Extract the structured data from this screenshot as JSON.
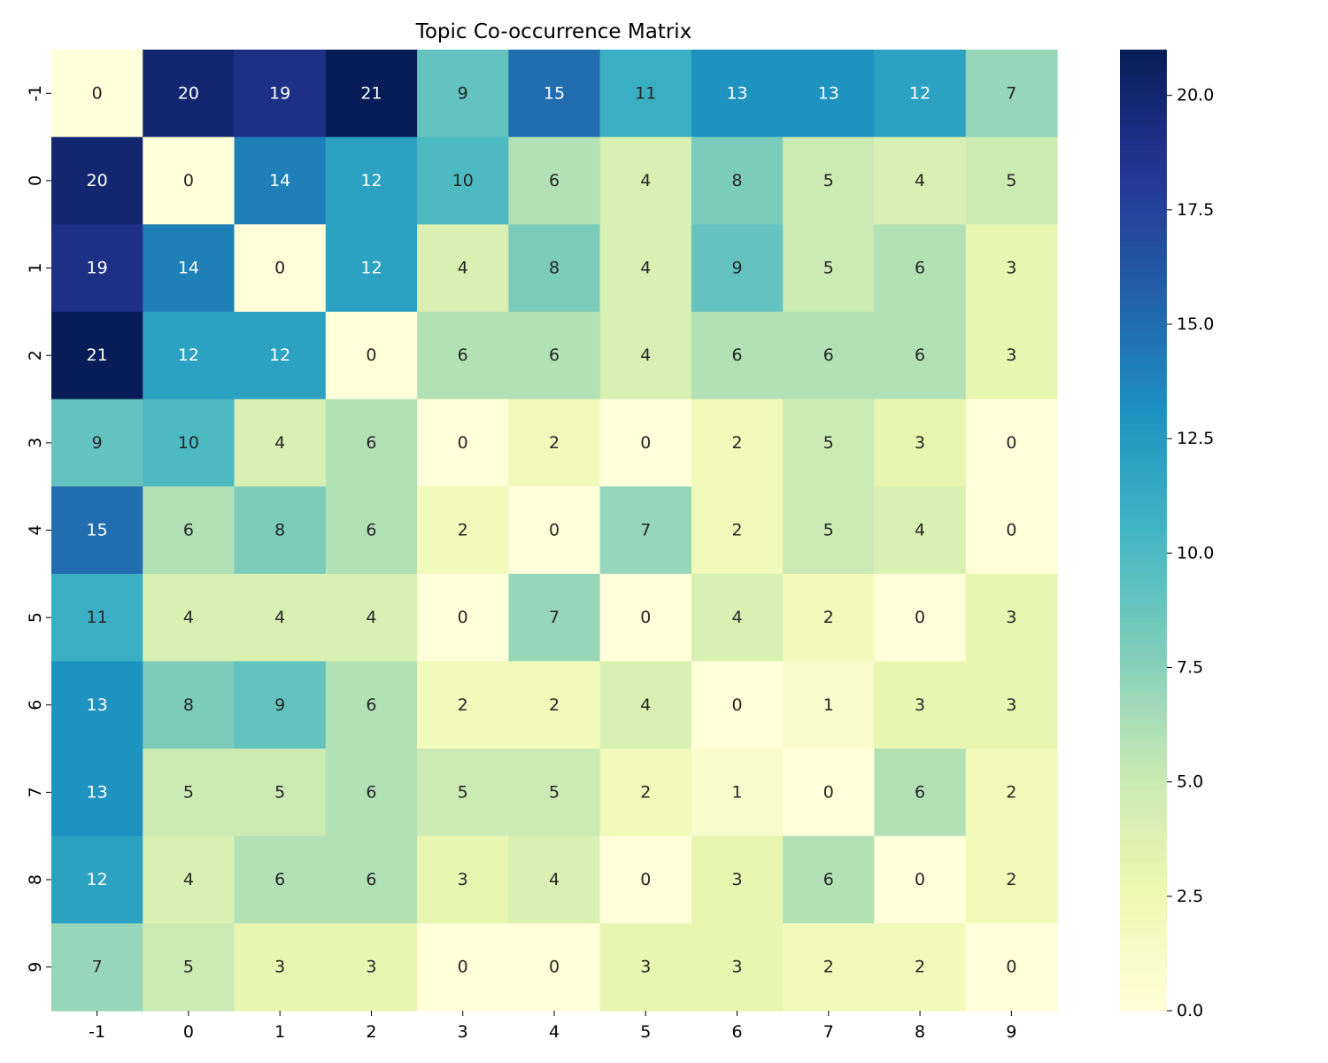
{
  "chart_data": {
    "type": "heatmap",
    "title": "Topic Co-occurrence Matrix",
    "xlabel": "",
    "ylabel": "",
    "x_categories": [
      "-1",
      "0",
      "1",
      "2",
      "3",
      "4",
      "5",
      "6",
      "7",
      "8",
      "9"
    ],
    "y_categories": [
      "-1",
      "0",
      "1",
      "2",
      "3",
      "4",
      "5",
      "6",
      "7",
      "8",
      "9"
    ],
    "values": [
      [
        0,
        20,
        19,
        21,
        9,
        15,
        11,
        13,
        13,
        12,
        7
      ],
      [
        20,
        0,
        14,
        12,
        10,
        6,
        4,
        8,
        5,
        4,
        5
      ],
      [
        19,
        14,
        0,
        12,
        4,
        8,
        4,
        9,
        5,
        6,
        3
      ],
      [
        21,
        12,
        12,
        0,
        6,
        6,
        4,
        6,
        6,
        6,
        3
      ],
      [
        9,
        10,
        4,
        6,
        0,
        2,
        0,
        2,
        5,
        3,
        0
      ],
      [
        15,
        6,
        8,
        6,
        2,
        0,
        7,
        2,
        5,
        4,
        0
      ],
      [
        11,
        4,
        4,
        4,
        0,
        7,
        0,
        4,
        2,
        0,
        3
      ],
      [
        13,
        8,
        9,
        6,
        2,
        2,
        4,
        0,
        1,
        3,
        3
      ],
      [
        13,
        5,
        5,
        6,
        5,
        5,
        2,
        1,
        0,
        6,
        2
      ],
      [
        12,
        4,
        6,
        6,
        3,
        4,
        0,
        3,
        6,
        0,
        2
      ],
      [
        7,
        5,
        3,
        3,
        0,
        0,
        3,
        3,
        2,
        2,
        0
      ]
    ],
    "colormap": "YlGnBu",
    "vmin": 0,
    "vmax": 21,
    "colorbar_ticks": [
      {
        "value": 0,
        "label": "0.0"
      },
      {
        "value": 2.5,
        "label": "2.5"
      },
      {
        "value": 5,
        "label": "5.0"
      },
      {
        "value": 7.5,
        "label": "7.5"
      },
      {
        "value": 10,
        "label": "10.0"
      },
      {
        "value": 12.5,
        "label": "12.5"
      },
      {
        "value": 15,
        "label": "15.0"
      },
      {
        "value": 17.5,
        "label": "17.5"
      },
      {
        "value": 20,
        "label": "20.0"
      }
    ],
    "annotate": true,
    "grid": false,
    "legend": "colorbar-right"
  }
}
